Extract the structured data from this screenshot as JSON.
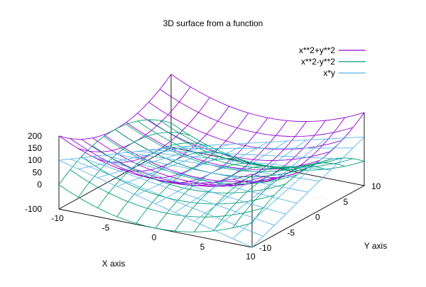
{
  "chart_data": {
    "type": "surface3d",
    "title": "3D surface from a function",
    "xlabel": "X axis",
    "ylabel": "Y axis",
    "zlabel": "",
    "xrange": [
      -10,
      10
    ],
    "yrange": [
      -10,
      10
    ],
    "zrange": [
      -100,
      200
    ],
    "x_ticks": [
      -10,
      -5,
      0,
      5,
      10
    ],
    "y_ticks": [
      -10,
      -5,
      0,
      5,
      10
    ],
    "z_ticks": [
      -100,
      0,
      50,
      100,
      150,
      200
    ],
    "grid_samples": 11,
    "legend_position": "top-right",
    "series": [
      {
        "name": "x**2+y**2",
        "expression": "x**2+y**2",
        "color": "#9400d3"
      },
      {
        "name": "x**2-y**2",
        "expression": "x**2-y**2",
        "color": "#009e73"
      },
      {
        "name": "x*y",
        "expression": "x*y",
        "color": "#56b4e9"
      }
    ]
  }
}
